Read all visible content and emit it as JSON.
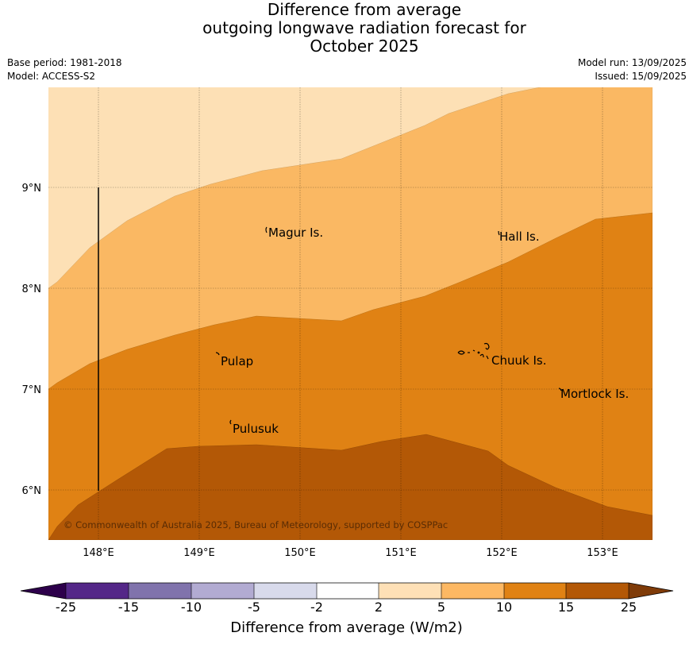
{
  "title": {
    "line1": "Difference from average",
    "line2": "outgoing longwave radiation forecast for",
    "line3": "October 2025"
  },
  "info_left": {
    "base_period": "Base period: 1981-2018",
    "model": "Model: ACCESS-S2"
  },
  "info_right": {
    "model_run": "Model run: 13/09/2025",
    "issued": "Issued: 15/09/2025"
  },
  "map": {
    "lat_labels": [
      "9°N",
      "8°N",
      "7°N",
      "6°N"
    ],
    "lon_labels": [
      "148°E",
      "149°E",
      "150°E",
      "151°E",
      "152°E",
      "153°E"
    ],
    "places": [
      "Magur Is.",
      "Hall Is.",
      "Pulap",
      "Chuuk Is.",
      "Mortlock Is.",
      "Pulusuk"
    ],
    "copyright": "© Commonwealth of Australia 2025, Bureau of Meteorology, supported by COSPPac",
    "band_colors": {
      "2_to_5": "#fde0b5",
      "5_to_10": "#fab863",
      "10_to_15": "#e08214",
      "15_to_25": "#b35806"
    }
  },
  "colorbar": {
    "label": "Difference from average (W/m2)",
    "ticks": [
      "-25",
      "-15",
      "-10",
      "-5",
      "-2",
      "2",
      "5",
      "10",
      "15",
      "25"
    ],
    "colors": [
      "#2d004b",
      "#542788",
      "#8073ac",
      "#b2abd2",
      "#d8daeb",
      "#ffffff",
      "#fee0b6",
      "#fdb863",
      "#e08214",
      "#b35806",
      "#7f3b08"
    ]
  }
}
